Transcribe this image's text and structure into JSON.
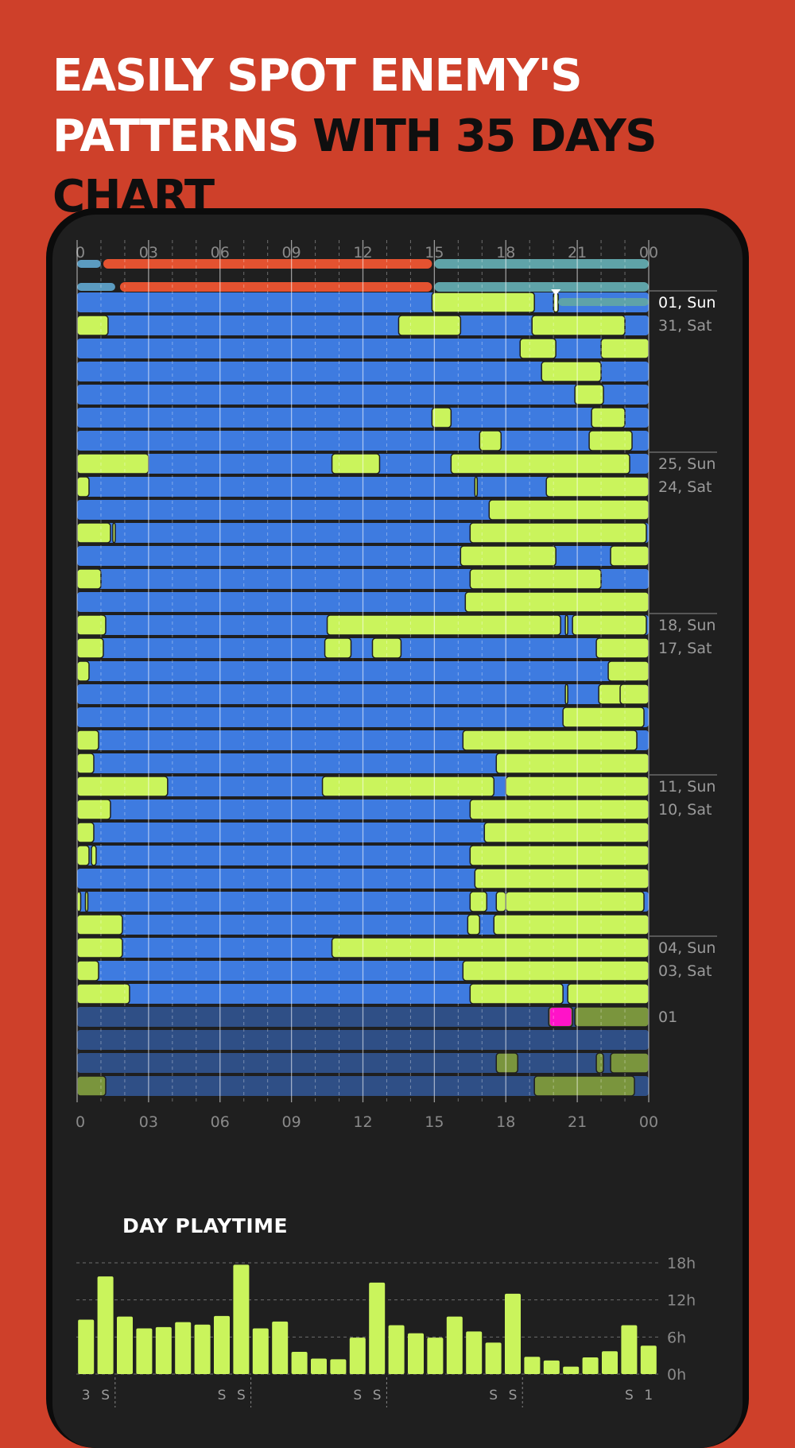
{
  "headline": {
    "line1": "EASILY SPOT ENEMY'S",
    "line2_part1": "PATTERNS ",
    "line2_part2": "WITH 35 DAYS CHART"
  },
  "colors": {
    "background": "#CE402A",
    "online": "#CAF45C",
    "offline": "#3E7BE0",
    "offline_muted": "#2F4F86",
    "online_muted": "#7A953D",
    "session_bar": "#E45230",
    "alert": "#FF13C8"
  },
  "timeline": {
    "hour_ticks": [
      "0",
      "03",
      "06",
      "09",
      "12",
      "15",
      "18",
      "21",
      "00"
    ],
    "day_labels": [
      {
        "row": 0,
        "text": "01, Sun",
        "current": true
      },
      {
        "row": 1,
        "text": "31, Sat"
      },
      {
        "row": 7,
        "text": "25, Sun"
      },
      {
        "row": 8,
        "text": "24, Sat"
      },
      {
        "row": 14,
        "text": "18, Sun"
      },
      {
        "row": 15,
        "text": "17, Sat"
      },
      {
        "row": 21,
        "text": "11, Sun"
      },
      {
        "row": 22,
        "text": "10, Sat"
      },
      {
        "row": 28,
        "text": "04, Sun"
      },
      {
        "row": 29,
        "text": "03, Sat"
      },
      {
        "row": 31,
        "text": "01"
      }
    ]
  },
  "chart_data": [
    {
      "type": "timeline",
      "title": "",
      "x_unit": "hour of day",
      "xlim": [
        0,
        24
      ],
      "x_ticks": [
        "0",
        "03",
        "06",
        "09",
        "12",
        "15",
        "18",
        "21",
        "00"
      ],
      "legend": {
        "online": "green",
        "offline": "blue"
      },
      "rows": [
        {
          "label": "01, Sun",
          "online": [
            [
              14.9,
              19.2
            ],
            [
              20.0,
              20.2
            ]
          ]
        },
        {
          "label": "31, Sat",
          "online": [
            [
              0,
              1.3
            ],
            [
              13.5,
              16.1
            ],
            [
              19.1,
              23.0
            ]
          ]
        },
        {
          "label": "",
          "online": [
            [
              18.6,
              20.1
            ],
            [
              22.0,
              24
            ]
          ]
        },
        {
          "label": "",
          "online": [
            [
              19.5,
              22.0
            ]
          ]
        },
        {
          "label": "",
          "online": [
            [
              20.9,
              22.1
            ]
          ]
        },
        {
          "label": "",
          "online": [
            [
              14.9,
              15.7
            ],
            [
              21.6,
              23.0
            ]
          ]
        },
        {
          "label": "",
          "online": [
            [
              16.9,
              17.8
            ],
            [
              21.5,
              23.3
            ]
          ]
        },
        {
          "label": "25, Sun",
          "online": [
            [
              0,
              3.0
            ],
            [
              10.7,
              12.7
            ],
            [
              15.7,
              23.2
            ]
          ]
        },
        {
          "label": "24, Sat",
          "online": [
            [
              0,
              0.5
            ],
            [
              16.7,
              16.8
            ],
            [
              19.7,
              24
            ]
          ]
        },
        {
          "label": "",
          "online": [
            [
              17.3,
              24
            ]
          ]
        },
        {
          "label": "",
          "online": [
            [
              0,
              1.4
            ],
            [
              1.5,
              1.6
            ],
            [
              16.5,
              23.9
            ]
          ]
        },
        {
          "label": "",
          "online": [
            [
              16.1,
              20.1
            ],
            [
              22.4,
              24
            ]
          ]
        },
        {
          "label": "",
          "online": [
            [
              0,
              1.0
            ],
            [
              16.5,
              22.0
            ]
          ]
        },
        {
          "label": "",
          "online": [
            [
              16.3,
              24
            ]
          ]
        },
        {
          "label": "18, Sun",
          "online": [
            [
              0,
              1.2
            ],
            [
              10.5,
              20.3
            ],
            [
              20.5,
              20.6
            ],
            [
              20.8,
              23.9
            ]
          ]
        },
        {
          "label": "17, Sat",
          "online": [
            [
              0,
              1.1
            ],
            [
              10.4,
              11.5
            ],
            [
              12.4,
              13.6
            ],
            [
              21.8,
              24
            ]
          ]
        },
        {
          "label": "",
          "online": [
            [
              0,
              0.5
            ],
            [
              22.3,
              24
            ]
          ]
        },
        {
          "label": "",
          "online": [
            [
              20.5,
              20.6
            ],
            [
              21.9,
              23.2
            ],
            [
              23.3,
              23.4
            ],
            [
              22.8,
              24
            ]
          ]
        },
        {
          "label": "",
          "online": [
            [
              20.4,
              23.8
            ]
          ]
        },
        {
          "label": "",
          "online": [
            [
              0,
              0.9
            ],
            [
              16.2,
              23.5
            ]
          ]
        },
        {
          "label": "",
          "online": [
            [
              0,
              0.7
            ],
            [
              17.6,
              24
            ]
          ]
        },
        {
          "label": "11, Sun",
          "online": [
            [
              0,
              3.8
            ],
            [
              10.3,
              17.5
            ],
            [
              18.0,
              24
            ]
          ]
        },
        {
          "label": "10, Sat",
          "online": [
            [
              0,
              1.4
            ],
            [
              16.5,
              24
            ]
          ]
        },
        {
          "label": "",
          "online": [
            [
              0,
              0.7
            ],
            [
              17.1,
              24
            ]
          ]
        },
        {
          "label": "",
          "online": [
            [
              0,
              0.5
            ],
            [
              0.6,
              0.8
            ],
            [
              16.5,
              24
            ]
          ]
        },
        {
          "label": "",
          "online": [
            [
              16.7,
              24
            ]
          ]
        },
        {
          "label": "",
          "online": [
            [
              0,
              0.15
            ],
            [
              0.35,
              0.45
            ],
            [
              16.5,
              17.2
            ],
            [
              17.6,
              18.0
            ],
            [
              18.0,
              23.8
            ]
          ]
        },
        {
          "label": "",
          "online": [
            [
              0,
              1.9
            ],
            [
              16.4,
              16.9
            ],
            [
              17.5,
              24
            ]
          ]
        },
        {
          "label": "04, Sun",
          "online": [
            [
              0,
              1.9
            ],
            [
              10.7,
              24
            ]
          ]
        },
        {
          "label": "03, Sat",
          "online": [
            [
              0,
              0.9
            ],
            [
              16.2,
              24
            ]
          ]
        },
        {
          "label": "",
          "online": [
            [
              0,
              2.2
            ],
            [
              16.5,
              20.4
            ],
            [
              20.6,
              24
            ]
          ]
        },
        {
          "label": "01",
          "online": [
            [
              19.8,
              20.8
            ],
            [
              20.9,
              24
            ]
          ]
        },
        {
          "label": "",
          "online": []
        },
        {
          "label": "",
          "online": [
            [
              17.6,
              18.5
            ],
            [
              21.8,
              22.1
            ],
            [
              22.4,
              24.0
            ]
          ]
        },
        {
          "label": "",
          "online": [
            [
              0,
              1.2
            ],
            [
              19.2,
              23.4
            ]
          ]
        }
      ]
    },
    {
      "type": "bar",
      "title": "DAY PLAYTIME",
      "ylabel": "",
      "ylim": [
        0,
        18
      ],
      "y_ticks": [
        "18h",
        "12h",
        "6h",
        "0h"
      ],
      "categories": [
        "3",
        "S",
        "",
        "",
        "",
        "",
        "",
        "S",
        "S",
        "",
        "",
        "",
        "",
        "",
        "S",
        "S",
        "",
        "",
        "",
        "",
        "",
        "S",
        "S",
        "",
        "",
        "",
        "",
        "",
        "S",
        "1"
      ],
      "values": [
        8.8,
        15.8,
        9.3,
        7.4,
        7.6,
        8.4,
        8.0,
        9.4,
        17.7,
        7.4,
        8.5,
        3.6,
        2.5,
        2.4,
        5.9,
        14.8,
        7.9,
        6.6,
        5.9,
        9.3,
        6.9,
        5.1,
        13.0,
        2.8,
        2.2,
        1.2,
        2.7,
        3.7,
        7.9,
        4.6
      ]
    }
  ],
  "playtime": {
    "title": "DAY PLAYTIME",
    "y_ticks": [
      "18h",
      "12h",
      "6h",
      "0h"
    ],
    "bar_first_label": "3",
    "weekend_label": "S",
    "bar_last_label": "1"
  }
}
